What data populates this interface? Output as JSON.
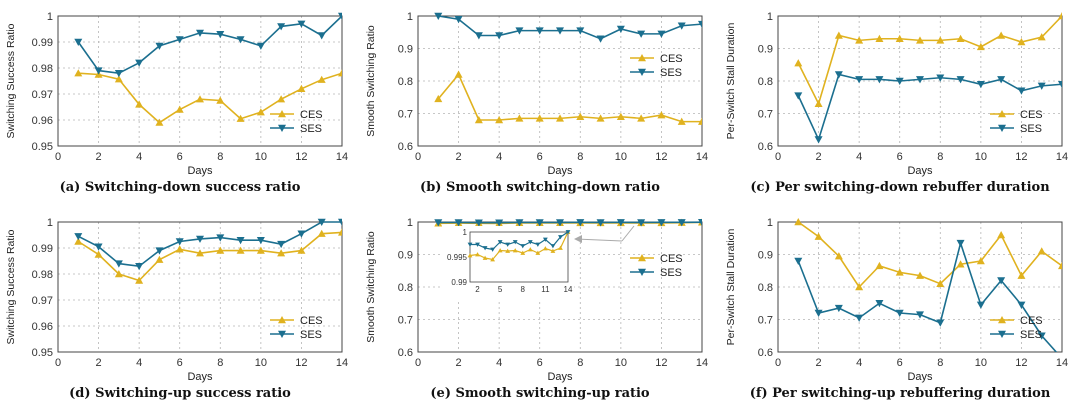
{
  "colors": {
    "ces": "#e0b21f",
    "ses": "#1b6f8f",
    "frame": "#444444",
    "grid": "#b5b5b5"
  },
  "chart_data": [
    {
      "id": "a",
      "type": "line",
      "caption": "(a) Switching-down success ratio",
      "xlabel": "Days",
      "ylabel": "Switching Success Ratio",
      "xlim": [
        0,
        14
      ],
      "ylim": [
        0.95,
        1
      ],
      "xticks": [
        "0",
        "2",
        "4",
        "6",
        "8",
        "10",
        "12",
        "14"
      ],
      "yticks": [
        "0.95",
        "0.96",
        "0.97",
        "0.98",
        "0.99",
        "1"
      ],
      "grid": true,
      "legend": "bottom-right",
      "x": [
        1,
        2,
        3,
        4,
        5,
        6,
        7,
        8,
        9,
        10,
        11,
        12,
        13,
        14
      ],
      "series": [
        {
          "name": "CES",
          "marker": "up",
          "values": [
            0.978,
            0.9775,
            0.9757,
            0.966,
            0.959,
            0.964,
            0.968,
            0.9675,
            0.9605,
            0.963,
            0.968,
            0.972,
            0.9755,
            0.978
          ]
        },
        {
          "name": "SES",
          "marker": "down",
          "values": [
            0.99,
            0.979,
            0.978,
            0.982,
            0.9885,
            0.991,
            0.9935,
            0.993,
            0.991,
            0.9885,
            0.996,
            0.997,
            0.9925,
            1.0
          ]
        }
      ]
    },
    {
      "id": "b",
      "type": "line",
      "caption": "(b) Smooth switching-down ratio",
      "xlabel": "Days",
      "ylabel": "Smooth Switching Ratio",
      "xlim": [
        0,
        14
      ],
      "ylim": [
        0.6,
        1
      ],
      "xticks": [
        "0",
        "2",
        "4",
        "6",
        "8",
        "10",
        "12",
        "14"
      ],
      "yticks": [
        "0.6",
        "0.7",
        "0.8",
        "0.9",
        "1"
      ],
      "grid": true,
      "legend": "right",
      "x": [
        1,
        2,
        3,
        4,
        5,
        6,
        7,
        8,
        9,
        10,
        11,
        12,
        13,
        14
      ],
      "series": [
        {
          "name": "CES",
          "marker": "up",
          "values": [
            0.745,
            0.82,
            0.68,
            0.68,
            0.685,
            0.685,
            0.685,
            0.69,
            0.685,
            0.69,
            0.685,
            0.695,
            0.675,
            0.675
          ]
        },
        {
          "name": "SES",
          "marker": "down",
          "values": [
            1.0,
            0.99,
            0.94,
            0.94,
            0.955,
            0.955,
            0.955,
            0.955,
            0.93,
            0.96,
            0.945,
            0.945,
            0.97,
            0.975
          ]
        }
      ]
    },
    {
      "id": "c",
      "type": "line",
      "caption": "(c) Per switching-down rebuffer duration",
      "xlabel": "Days",
      "ylabel": "Per-Switch Stall Duration",
      "xlim": [
        0,
        14
      ],
      "ylim": [
        0.6,
        1
      ],
      "xticks": [
        "0",
        "2",
        "4",
        "6",
        "8",
        "10",
        "12",
        "14"
      ],
      "yticks": [
        "0.6",
        "0.7",
        "0.8",
        "0.9",
        "1"
      ],
      "grid": true,
      "legend": "bottom-right",
      "x": [
        1,
        2,
        3,
        4,
        5,
        6,
        7,
        8,
        9,
        10,
        11,
        12,
        13,
        14
      ],
      "series": [
        {
          "name": "CES",
          "marker": "up",
          "values": [
            0.855,
            0.73,
            0.94,
            0.925,
            0.93,
            0.93,
            0.925,
            0.925,
            0.93,
            0.905,
            0.94,
            0.92,
            0.935,
            1.0
          ]
        },
        {
          "name": "SES",
          "marker": "down",
          "values": [
            0.755,
            0.62,
            0.82,
            0.805,
            0.805,
            0.8,
            0.805,
            0.81,
            0.805,
            0.79,
            0.805,
            0.77,
            0.785,
            0.79
          ]
        }
      ]
    },
    {
      "id": "d",
      "type": "line",
      "caption": "(d) Switching-up success ratio",
      "xlabel": "Days",
      "ylabel": "Switching Success Ratio",
      "xlim": [
        0,
        14
      ],
      "ylim": [
        0.95,
        1
      ],
      "xticks": [
        "0",
        "2",
        "4",
        "6",
        "8",
        "10",
        "12",
        "14"
      ],
      "yticks": [
        "0.95",
        "0.96",
        "0.97",
        "0.98",
        "0.99",
        "1"
      ],
      "grid": true,
      "legend": "bottom-right",
      "x": [
        1,
        2,
        3,
        4,
        5,
        6,
        7,
        8,
        9,
        10,
        11,
        12,
        13,
        14
      ],
      "series": [
        {
          "name": "CES",
          "marker": "up",
          "values": [
            0.9925,
            0.9875,
            0.98,
            0.9775,
            0.9855,
            0.9895,
            0.988,
            0.989,
            0.989,
            0.989,
            0.988,
            0.989,
            0.9955,
            0.996
          ]
        },
        {
          "name": "SES",
          "marker": "down",
          "values": [
            0.9945,
            0.9905,
            0.984,
            0.983,
            0.989,
            0.9925,
            0.9935,
            0.994,
            0.993,
            0.993,
            0.9915,
            0.9955,
            1.0,
            1.0
          ]
        }
      ]
    },
    {
      "id": "e",
      "type": "line",
      "caption": "(e) Smooth switching-up ratio",
      "xlabel": "Days",
      "ylabel": "Smooth Switching Ratio",
      "xlim": [
        0,
        14
      ],
      "ylim": [
        0.6,
        1
      ],
      "xticks": [
        "0",
        "2",
        "4",
        "6",
        "8",
        "10",
        "12",
        "14"
      ],
      "yticks": [
        "0.6",
        "0.7",
        "0.8",
        "0.9",
        "1"
      ],
      "grid": true,
      "legend": "right",
      "x": [
        1,
        2,
        3,
        4,
        5,
        6,
        7,
        8,
        9,
        10,
        11,
        12,
        13,
        14
      ],
      "series": [
        {
          "name": "CES",
          "marker": "up",
          "values": [
            0.996,
            0.9965,
            0.996,
            0.9955,
            0.997,
            0.997,
            0.997,
            0.997,
            0.997,
            0.997,
            0.997,
            0.997,
            0.998,
            0.999
          ]
        },
        {
          "name": "SES",
          "marker": "down",
          "values": [
            0.9985,
            0.9985,
            0.998,
            0.998,
            0.9985,
            0.9985,
            0.9985,
            0.999,
            0.9985,
            0.999,
            0.9985,
            0.999,
            0.999,
            0.9995
          ]
        }
      ],
      "inset": {
        "xlim": [
          1,
          14
        ],
        "ylim": [
          0.99,
          1
        ],
        "xticks": [
          "2",
          "5",
          "8",
          "11",
          "14"
        ],
        "yticks": [
          "0.99",
          "0.995",
          "1"
        ],
        "series": [
          {
            "name": "CES",
            "values": [
              0.9953,
              0.9955,
              0.9948,
              0.9945,
              0.9963,
              0.9962,
              0.9963,
              0.9958,
              0.9965,
              0.9958,
              0.9967,
              0.9962,
              0.9968,
              1.0
            ]
          },
          {
            "name": "SES",
            "values": [
              0.9975,
              0.9975,
              0.9968,
              0.9965,
              0.998,
              0.9975,
              0.998,
              0.9972,
              0.998,
              0.9975,
              0.9985,
              0.9972,
              0.999,
              1.0
            ]
          }
        ]
      }
    },
    {
      "id": "f",
      "type": "line",
      "caption": "(f) Per switching-up rebuffering duration",
      "xlabel": "Days",
      "ylabel": "Per-Switch Stall Duration",
      "xlim": [
        0,
        14
      ],
      "ylim": [
        0.6,
        1
      ],
      "xticks": [
        "0",
        "2",
        "4",
        "6",
        "8",
        "10",
        "12",
        "14"
      ],
      "yticks": [
        "0.6",
        "0.7",
        "0.8",
        "0.9",
        "1"
      ],
      "grid": true,
      "legend": "bottom-right",
      "x": [
        1,
        2,
        3,
        4,
        5,
        6,
        7,
        8,
        9,
        10,
        11,
        12,
        13,
        14
      ],
      "series": [
        {
          "name": "CES",
          "marker": "up",
          "values": [
            1.0,
            0.955,
            0.895,
            0.8,
            0.865,
            0.845,
            0.835,
            0.81,
            0.87,
            0.88,
            0.96,
            0.835,
            0.91,
            0.865
          ]
        },
        {
          "name": "SES",
          "marker": "down",
          "values": [
            0.88,
            0.72,
            0.735,
            0.705,
            0.75,
            0.72,
            0.715,
            0.69,
            0.935,
            0.745,
            0.82,
            0.745,
            0.65,
            0.58
          ]
        }
      ]
    }
  ]
}
